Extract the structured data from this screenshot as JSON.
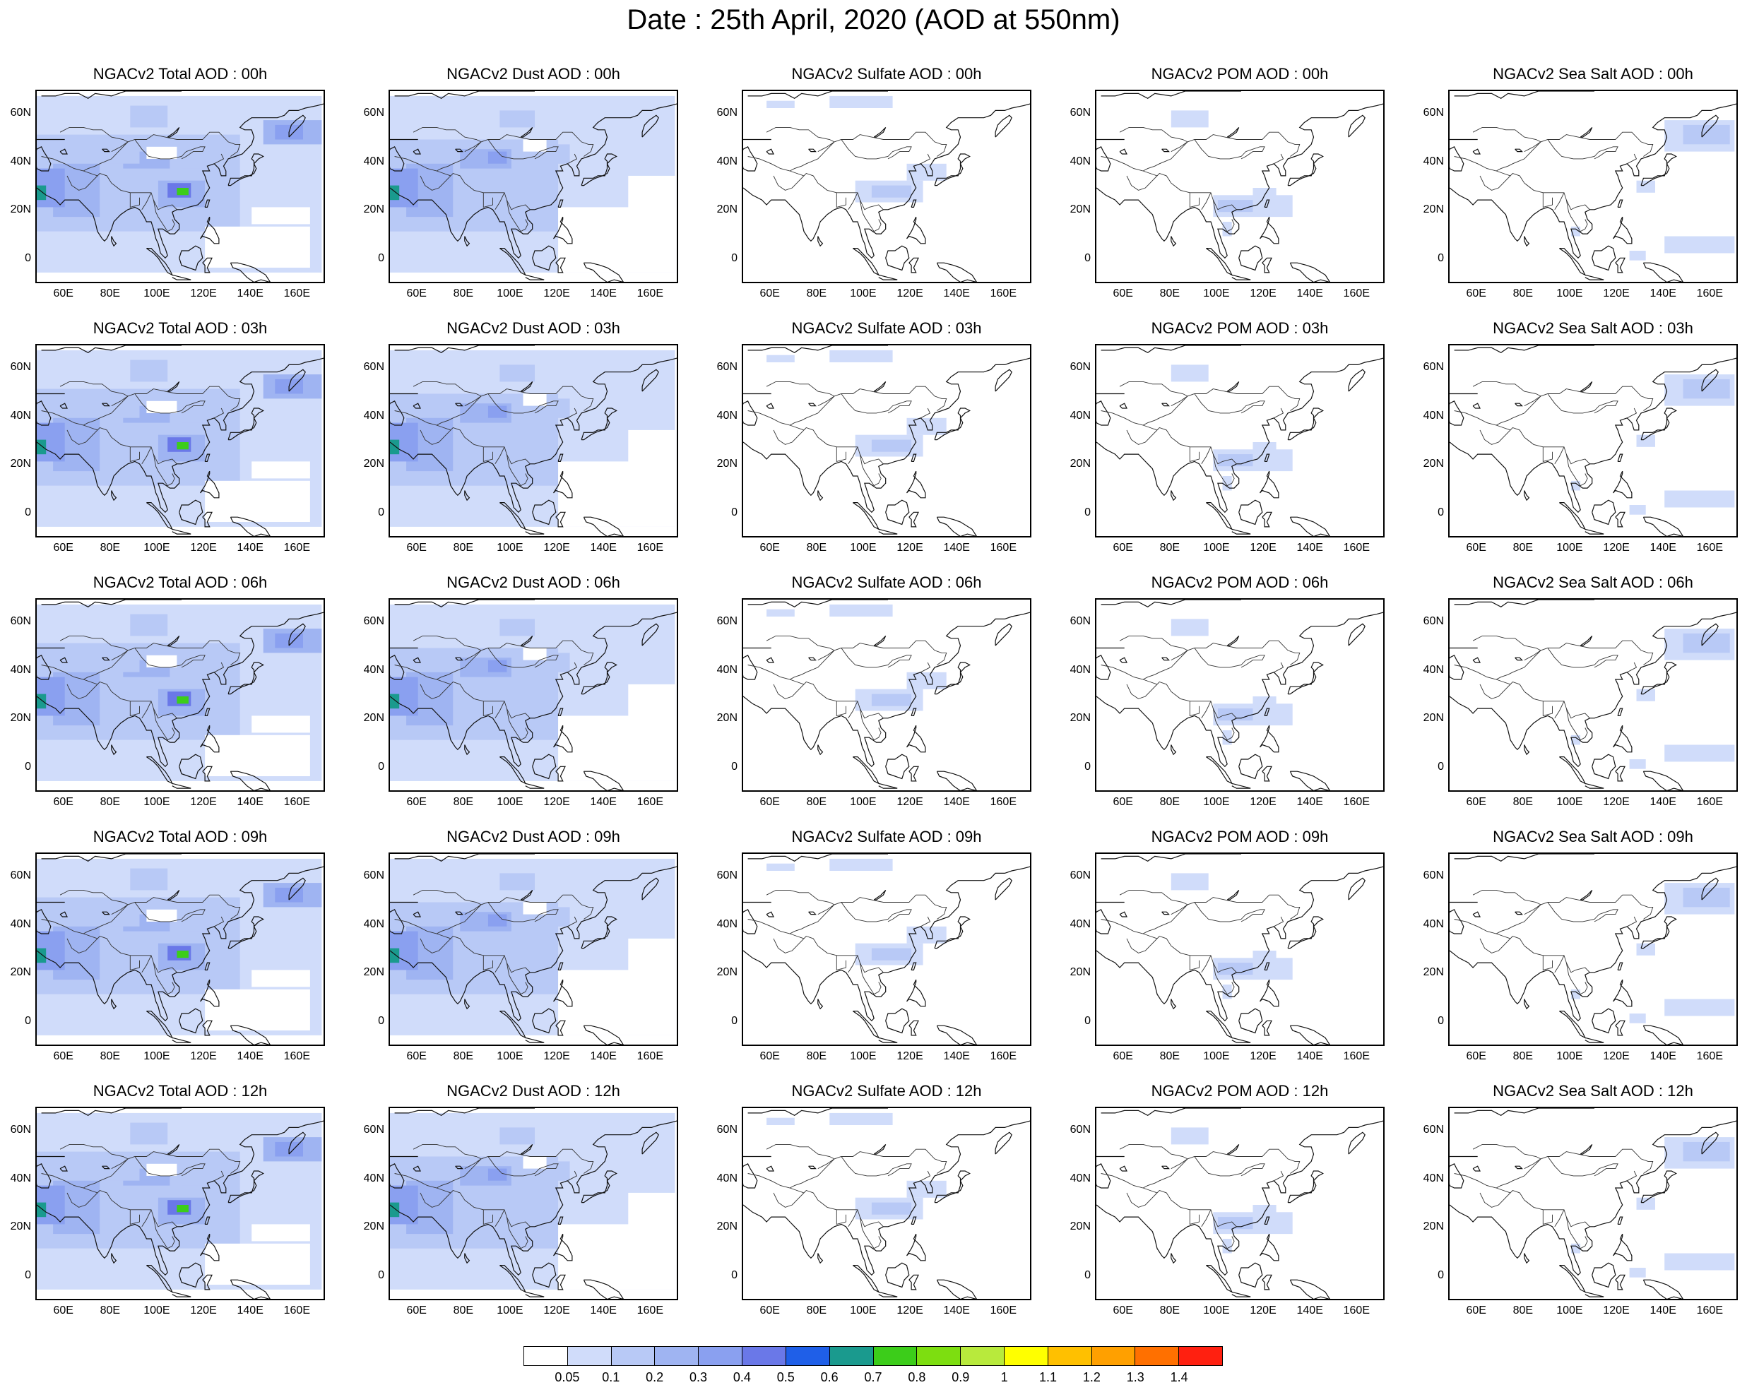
{
  "title": "Date : 25th April, 2020 (AOD at 550nm)",
  "rows": [
    [
      "NGACv2 Total AOD : 00h",
      "NGACv2 Dust AOD : 00h",
      "NGACv2 Sulfate AOD : 00h",
      "NGACv2 POM AOD : 00h",
      "NGACv2 Sea Salt AOD : 00h"
    ],
    [
      "NGACv2 Total AOD : 03h",
      "NGACv2 Dust AOD : 03h",
      "NGACv2 Sulfate AOD : 03h",
      "NGACv2 POM AOD : 03h",
      "NGACv2 Sea Salt AOD : 03h"
    ],
    [
      "NGACv2 Total AOD : 06h",
      "NGACv2 Dust AOD : 06h",
      "NGACv2 Sulfate AOD : 06h",
      "NGACv2 POM AOD : 06h",
      "NGACv2 Sea Salt AOD : 06h"
    ],
    [
      "NGACv2 Total AOD : 09h",
      "NGACv2 Dust AOD : 09h",
      "NGACv2 Sulfate AOD : 09h",
      "NGACv2 POM AOD : 09h",
      "NGACv2 Sea Salt  AOD : 09h"
    ],
    [
      "NGACv2 Total AOD  : 12h",
      "NGACv2 Dust AOD : 12h",
      "NGACv2 Sulfate AOD : 12h",
      "NGACv2 POM  AOD : 12h",
      "NGACv2 Sea Salt  AOD : 12h"
    ]
  ],
  "lat_ticks": [
    "60N",
    "40N",
    "20N",
    "0"
  ],
  "lon_ticks": [
    "60E",
    "80E",
    "100E",
    "120E",
    "140E",
    "160E"
  ],
  "colorbar": {
    "labels": [
      "0.05",
      "0.1",
      "0.2",
      "0.3",
      "0.4",
      "0.5",
      "0.6",
      "0.7",
      "0.8",
      "0.9",
      "1",
      "1.1",
      "1.2",
      "1.3",
      "1.4"
    ],
    "colors": [
      "#ffffff",
      "#d0dcfa",
      "#b8c9f6",
      "#9fb4f2",
      "#8aa0f0",
      "#6a78e8",
      "#1f5fe8",
      "#1a9a8e",
      "#3ccd1a",
      "#7dde10",
      "#b8ea3c",
      "#ffff00",
      "#ffc000",
      "#ffa000",
      "#ff7000",
      "#ff2010"
    ]
  },
  "fields": {
    "total": "aerosol optical depth field (total)",
    "dust": "aerosol optical depth field (dust)",
    "sulfate": "aerosol optical depth field (sulfate)",
    "pom": "aerosol optical depth field (POM)",
    "seasalt": "aerosol optical depth field (sea salt)"
  }
}
